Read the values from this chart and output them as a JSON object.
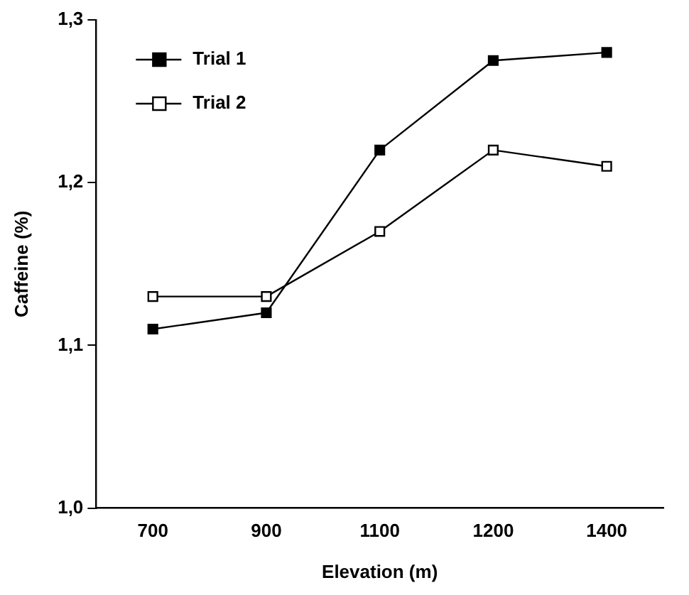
{
  "chart_data": {
    "type": "line",
    "xlabel": "Elevation (m)",
    "ylabel": "Caffeine (%)",
    "categories": [
      "700",
      "900",
      "1100",
      "1200",
      "1400"
    ],
    "series": [
      {
        "name": "Trial 1",
        "color": "#000000",
        "values": [
          1.11,
          1.12,
          1.22,
          1.275,
          1.28
        ]
      },
      {
        "name": "Trial 2",
        "color": "#000000",
        "values": [
          1.13,
          1.13,
          1.17,
          1.22,
          1.21
        ]
      }
    ],
    "ylim": [
      1.0,
      1.3
    ],
    "yticks": [
      {
        "value": 1.0,
        "label": "1,0"
      },
      {
        "value": 1.1,
        "label": "1,1"
      },
      {
        "value": 1.2,
        "label": "1,2"
      },
      {
        "value": 1.3,
        "label": "1,3"
      }
    ],
    "grid": false,
    "legend": "top left",
    "marker": "square",
    "line_style": "solid"
  }
}
